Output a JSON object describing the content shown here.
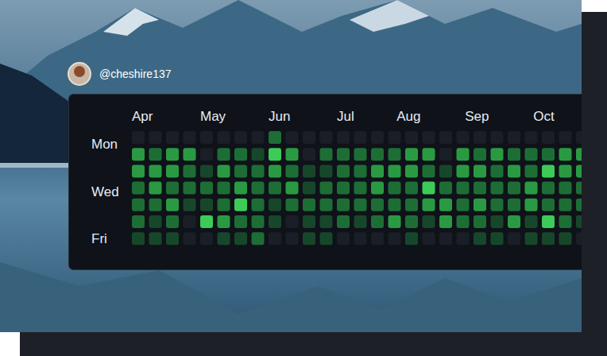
{
  "header": {
    "username": "@cheshire137"
  },
  "chart_data": {
    "type": "heatmap",
    "xlim": [
      0,
      27
    ],
    "ylim": [
      -0.5,
      6.5
    ],
    "xticks": [
      {
        "value": 0,
        "label": "Apr"
      },
      {
        "value": 4,
        "label": "May"
      },
      {
        "value": 8,
        "label": "Jun"
      },
      {
        "value": 12,
        "label": "Jul"
      },
      {
        "value": 15.5,
        "label": "Aug"
      },
      {
        "value": 19.5,
        "label": "Sep"
      },
      {
        "value": 23.5,
        "label": "Oct"
      }
    ],
    "yticks": [
      {
        "value": 0.4,
        "label": "Mon"
      },
      {
        "value": 3.2,
        "label": "Wed"
      },
      {
        "value": 6,
        "label": "Fri"
      }
    ],
    "colors": [
      "#1a1e26",
      "#17472b",
      "#1d6e35",
      "#2a9a42",
      "#3dcb58"
    ],
    "values": [
      [
        0,
        0,
        0,
        0,
        0,
        0,
        0,
        0,
        2,
        0,
        0,
        0,
        0,
        0,
        0,
        0,
        0,
        0,
        0,
        0,
        0,
        0,
        0,
        0,
        0,
        0,
        0
      ],
      [
        3,
        2,
        3,
        3,
        0,
        2,
        2,
        1,
        4,
        3,
        0,
        2,
        2,
        2,
        2,
        2,
        3,
        3,
        0,
        3,
        2,
        3,
        2,
        2,
        2,
        3,
        3
      ],
      [
        3,
        3,
        3,
        2,
        1,
        3,
        2,
        2,
        3,
        2,
        1,
        1,
        2,
        2,
        3,
        3,
        3,
        2,
        1,
        3,
        3,
        2,
        3,
        2,
        4,
        3,
        3
      ],
      [
        2,
        3,
        2,
        2,
        2,
        2,
        3,
        2,
        2,
        3,
        1,
        2,
        2,
        2,
        3,
        2,
        2,
        4,
        2,
        2,
        2,
        2,
        2,
        3,
        2,
        2,
        2
      ],
      [
        2,
        2,
        3,
        1,
        1,
        2,
        4,
        2,
        1,
        2,
        2,
        2,
        2,
        2,
        2,
        2,
        2,
        3,
        3,
        2,
        3,
        2,
        2,
        3,
        2,
        2,
        2
      ],
      [
        2,
        1,
        2,
        0,
        4,
        3,
        2,
        2,
        1,
        0,
        1,
        1,
        2,
        1,
        2,
        3,
        2,
        1,
        3,
        2,
        2,
        1,
        3,
        1,
        4,
        2,
        1
      ],
      [
        1,
        1,
        1,
        0,
        0,
        1,
        1,
        2,
        0,
        0,
        1,
        1,
        0,
        0,
        0,
        0,
        1,
        0,
        0,
        0,
        1,
        1,
        0,
        1,
        1,
        1,
        0
      ]
    ]
  }
}
